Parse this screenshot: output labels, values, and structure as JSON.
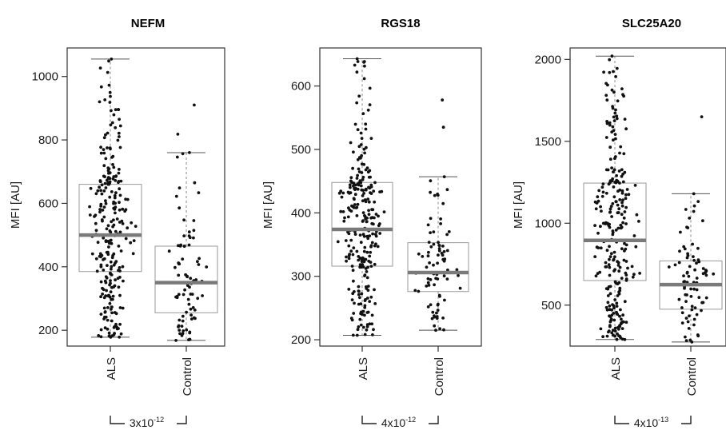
{
  "chart_data": [
    {
      "type": "box",
      "title": "NEFM",
      "ylabel": "MFI [AU]",
      "ylim": [
        150,
        1090
      ],
      "yticks": [
        200,
        400,
        600,
        800,
        1000
      ],
      "categories": [
        "ALS",
        "Control"
      ],
      "boxes": [
        {
          "name": "ALS",
          "whisker_low": 178,
          "q1": 385,
          "median": 500,
          "q3": 660,
          "whisker_high": 1055,
          "outliers": [],
          "points": 260
        },
        {
          "name": "Control",
          "whisker_low": 168,
          "q1": 255,
          "median": 350,
          "q3": 465,
          "whisker_high": 760,
          "outliers": [
            818,
            910
          ],
          "points": 80
        }
      ],
      "pvalue": {
        "base": "3x10",
        "exp": "-12"
      }
    },
    {
      "type": "box",
      "title": "RGS18",
      "ylabel": "MFI [AU]",
      "ylim": [
        190,
        660
      ],
      "yticks": [
        200,
        300,
        400,
        500,
        600
      ],
      "categories": [
        "ALS",
        "Control"
      ],
      "boxes": [
        {
          "name": "ALS",
          "whisker_low": 207,
          "q1": 316,
          "median": 374,
          "q3": 448,
          "whisker_high": 643,
          "outliers": [],
          "points": 260
        },
        {
          "name": "Control",
          "whisker_low": 215,
          "q1": 276,
          "median": 306,
          "q3": 353,
          "whisker_high": 457,
          "outliers": [
            535,
            578
          ],
          "points": 80
        }
      ],
      "pvalue": {
        "base": "4x10",
        "exp": "-12"
      }
    },
    {
      "type": "box",
      "title": "SLC25A20",
      "ylabel": "MFI [AU]",
      "ylim": [
        250,
        2070
      ],
      "yticks": [
        500,
        1000,
        1500,
        2000
      ],
      "categories": [
        "ALS",
        "Control"
      ],
      "boxes": [
        {
          "name": "ALS",
          "whisker_low": 290,
          "q1": 650,
          "median": 895,
          "q3": 1245,
          "whisker_high": 2020,
          "outliers": [],
          "points": 260
        },
        {
          "name": "Control",
          "whisker_low": 275,
          "q1": 475,
          "median": 625,
          "q3": 770,
          "whisker_high": 1180,
          "outliers": [
            1650
          ],
          "points": 80
        }
      ],
      "pvalue": {
        "base": "4x10",
        "exp": "-13"
      }
    }
  ],
  "colors": {
    "median": "#7a7a7a",
    "box": "#9a9a9a",
    "points": "#111111",
    "axis": "#333333"
  }
}
